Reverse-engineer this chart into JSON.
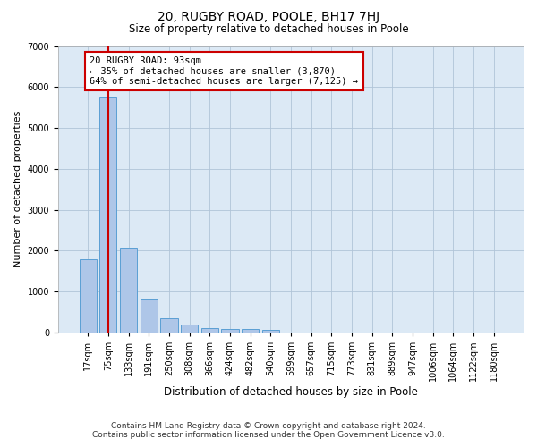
{
  "title": "20, RUGBY ROAD, POOLE, BH17 7HJ",
  "subtitle": "Size of property relative to detached houses in Poole",
  "xlabel": "Distribution of detached houses by size in Poole",
  "ylabel": "Number of detached properties",
  "bar_labels": [
    "17sqm",
    "75sqm",
    "133sqm",
    "191sqm",
    "250sqm",
    "308sqm",
    "366sqm",
    "424sqm",
    "482sqm",
    "540sqm",
    "599sqm",
    "657sqm",
    "715sqm",
    "773sqm",
    "831sqm",
    "889sqm",
    "947sqm",
    "1006sqm",
    "1064sqm",
    "1122sqm",
    "1180sqm"
  ],
  "bar_values": [
    1780,
    5750,
    2080,
    800,
    340,
    190,
    115,
    95,
    90,
    70,
    0,
    0,
    0,
    0,
    0,
    0,
    0,
    0,
    0,
    0,
    0
  ],
  "bar_color": "#aec6e8",
  "bar_edge_color": "#5a9fd4",
  "vline_index": 1,
  "property_label": "20 RUGBY ROAD: 93sqm",
  "annotation_line1": "← 35% of detached houses are smaller (3,870)",
  "annotation_line2": "64% of semi-detached houses are larger (7,125) →",
  "vline_color": "#cc0000",
  "ylim": [
    0,
    7000
  ],
  "yticks": [
    0,
    1000,
    2000,
    3000,
    4000,
    5000,
    6000,
    7000
  ],
  "grid_color": "#b0c4d8",
  "background_color": "#dce9f5",
  "footer_line1": "Contains HM Land Registry data © Crown copyright and database right 2024.",
  "footer_line2": "Contains public sector information licensed under the Open Government Licence v3.0.",
  "title_fontsize": 10,
  "subtitle_fontsize": 8.5,
  "ylabel_fontsize": 8,
  "xlabel_fontsize": 8.5,
  "tick_fontsize": 7,
  "annotation_fontsize": 7.5,
  "footer_fontsize": 6.5
}
